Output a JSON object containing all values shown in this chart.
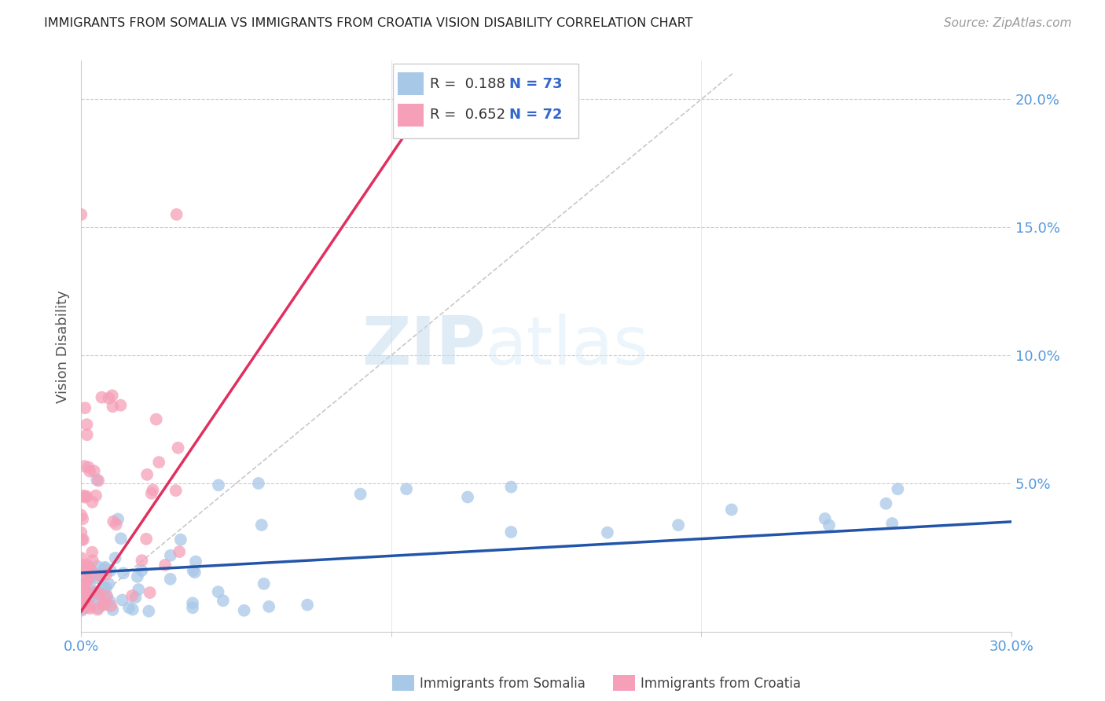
{
  "title": "IMMIGRANTS FROM SOMALIA VS IMMIGRANTS FROM CROATIA VISION DISABILITY CORRELATION CHART",
  "source": "Source: ZipAtlas.com",
  "ylabel": "Vision Disability",
  "xlim": [
    0.0,
    0.3
  ],
  "ylim": [
    -0.008,
    0.215
  ],
  "somalia_color": "#a8c8e8",
  "croatia_color": "#f5a0b8",
  "somalia_line_color": "#2255aa",
  "croatia_line_color": "#e03060",
  "diagonal_color": "#bbbbbb",
  "grid_color": "#cccccc",
  "R_somalia": 0.188,
  "N_somalia": 73,
  "R_croatia": 0.652,
  "N_croatia": 72,
  "legend_label_somalia": "Immigrants from Somalia",
  "legend_label_croatia": "Immigrants from Croatia",
  "watermark_zip": "ZIP",
  "watermark_atlas": "atlas",
  "background_color": "#ffffff",
  "tick_color": "#5599dd",
  "title_color": "#222222",
  "source_color": "#999999",
  "ylabel_color": "#555555"
}
